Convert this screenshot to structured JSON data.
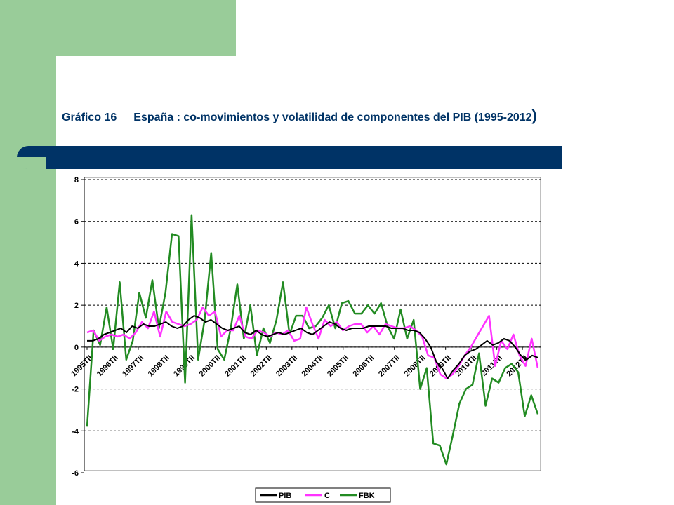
{
  "page": {
    "title_number": "Gráfico 16",
    "title_text": "España : co-movimientos y volatilidad de componentes del PIB (1995-2012",
    "title_close": ")"
  },
  "chart_data": {
    "type": "line",
    "ylim": [
      -6,
      8
    ],
    "yticks": [
      -6,
      -4,
      -2,
      0,
      2,
      4,
      6,
      8
    ],
    "x_labels": [
      "1995TII",
      "1996TII",
      "1997TII",
      "1998TII",
      "1999TII",
      "2000TII",
      "2001TII",
      "2002TII",
      "2003TII",
      "2004TII",
      "2005TII",
      "2006TII",
      "2007TII",
      "2008TII",
      "2009TII",
      "2010TII",
      "2011TII",
      "2012TII"
    ],
    "grid": "horizontal-dashed",
    "legend": "bottom",
    "series": [
      {
        "name": "PIB",
        "color": "#000000",
        "values": [
          0.3,
          0.3,
          0.4,
          0.6,
          0.7,
          0.8,
          0.9,
          0.7,
          1.0,
          0.9,
          1.1,
          1.0,
          1.0,
          1.1,
          1.2,
          1.0,
          0.9,
          1.0,
          1.3,
          1.5,
          1.4,
          1.2,
          1.3,
          1.1,
          0.9,
          0.8,
          0.9,
          1.0,
          0.7,
          0.6,
          0.8,
          0.6,
          0.5,
          0.6,
          0.7,
          0.6,
          0.7,
          0.8,
          0.9,
          0.7,
          0.6,
          0.8,
          1.0,
          1.2,
          1.1,
          0.9,
          0.8,
          0.9,
          0.9,
          0.9,
          1.0,
          1.0,
          1.0,
          1.0,
          0.9,
          0.9,
          0.9,
          0.8,
          0.8,
          0.7,
          0.4,
          0.0,
          -0.7,
          -1.0,
          -1.5,
          -1.1,
          -0.8,
          -0.4,
          -0.2,
          -0.1,
          0.1,
          0.3,
          0.1,
          0.2,
          0.4,
          0.3,
          0.0,
          -0.4,
          -0.6,
          -0.4,
          -0.5
        ]
      },
      {
        "name": "C",
        "color": "#ff33ff",
        "values": [
          0.7,
          0.8,
          0.3,
          0.5,
          0.6,
          0.5,
          0.6,
          0.4,
          0.7,
          1.2,
          0.9,
          1.7,
          0.5,
          1.7,
          1.2,
          1.1,
          1.0,
          1.1,
          1.3,
          1.9,
          1.5,
          1.7,
          0.5,
          0.8,
          0.8,
          1.5,
          0.5,
          0.4,
          0.8,
          0.7,
          0.5,
          0.7,
          0.6,
          0.8,
          0.3,
          0.4,
          1.9,
          1.1,
          0.4,
          1.3,
          1.0,
          1.2,
          0.8,
          1.0,
          1.1,
          1.1,
          0.7,
          1.0,
          0.6,
          1.1,
          1.0,
          0.9,
          0.9,
          1.0,
          0.8,
          0.5,
          -0.4,
          -0.5,
          -1.3,
          -1.5,
          -1.3,
          -0.9,
          -0.4,
          0.0,
          0.5,
          1.0,
          1.5,
          -0.9,
          0.3,
          -0.1,
          0.6,
          -0.4,
          -0.9,
          0.4,
          -1.0
        ]
      },
      {
        "name": "FBK",
        "color": "#228b22",
        "values": [
          -3.8,
          0.8,
          0.1,
          1.9,
          -0.1,
          3.1,
          -0.6,
          0.3,
          2.6,
          1.4,
          3.2,
          0.9,
          2.6,
          5.4,
          5.3,
          -1.7,
          6.3,
          -0.6,
          1.3,
          4.5,
          -0.1,
          -0.6,
          0.9,
          3.0,
          0.4,
          2.0,
          -0.4,
          0.9,
          0.2,
          1.3,
          3.1,
          0.6,
          1.5,
          1.5,
          0.9,
          1.0,
          1.4,
          2.0,
          0.9,
          2.1,
          2.2,
          1.6,
          1.6,
          2.0,
          1.6,
          2.1,
          1.0,
          0.4,
          1.8,
          0.4,
          1.3,
          -2.0,
          -1.0,
          -4.6,
          -4.7,
          -5.6,
          -4.2,
          -2.7,
          -2.0,
          -1.8,
          -0.3,
          -2.8,
          -1.5,
          -1.7,
          -1.0,
          -0.8,
          -1.2,
          -3.3,
          -2.3,
          -3.2
        ]
      }
    ]
  }
}
